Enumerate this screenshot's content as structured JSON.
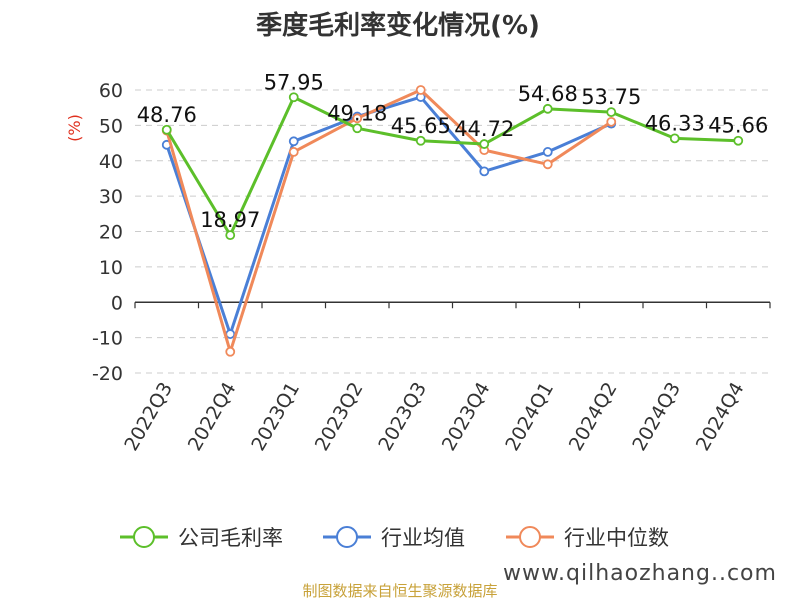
{
  "chart_data": {
    "type": "line",
    "title": "季度毛利率变化情况(%)",
    "ylabel": "(%)",
    "categories": [
      "2022Q3",
      "2022Q4",
      "2023Q1",
      "2023Q2",
      "2023Q3",
      "2023Q4",
      "2024Q1",
      "2024Q2",
      "2024Q3",
      "2024Q4"
    ],
    "ylim": [
      -20,
      60
    ],
    "yticks": [
      -20,
      -10,
      0,
      10,
      20,
      30,
      40,
      50,
      60
    ],
    "grid": true,
    "legend_position": "bottom",
    "series": [
      {
        "name": "公司毛利率",
        "color": "#5cbf2a",
        "values": [
          48.76,
          18.97,
          57.95,
          49.18,
          45.65,
          44.72,
          54.68,
          53.75,
          46.33,
          45.66
        ],
        "labels": [
          "48.76",
          "18.97",
          "57.95",
          "49.18",
          "45.65",
          "44.72",
          "54.68",
          "53.75",
          "46.33",
          "45.66"
        ]
      },
      {
        "name": "行业均值",
        "color": "#4a7fd6",
        "values": [
          44.5,
          -9.0,
          45.5,
          52.5,
          58.0,
          37.0,
          42.5,
          50.5,
          null,
          null
        ]
      },
      {
        "name": "行业中位数",
        "color": "#f0895a",
        "values": [
          48.5,
          -14.0,
          42.5,
          52.0,
          60.0,
          43.0,
          39.0,
          51.0,
          null,
          null
        ]
      }
    ]
  },
  "source_text": "制图数据来自恒生聚源数据库",
  "watermark_text": "www.qilhaozhang..com"
}
